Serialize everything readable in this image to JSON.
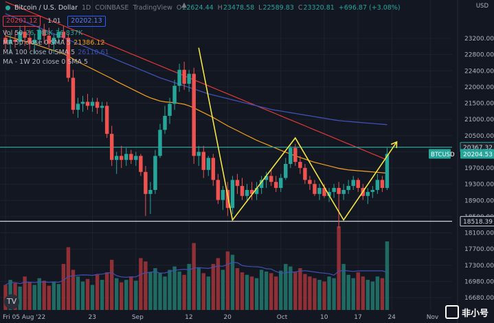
{
  "legend": {
    "symbol_title": "Bitcoin / U.S. Dollar",
    "interval": "1D",
    "exchange": "COINBASE",
    "platform": "TradingView",
    "open_label": "O",
    "open": "22624.44",
    "high_label": "H",
    "high": "23478.58",
    "low_label": "L",
    "low": "22589.83",
    "close_label": "C",
    "close": "23320.81",
    "change": "+696.87 (+3.08%)",
    "sell_price": "20201.12",
    "spread": "1.01",
    "buy_price": "20202.13"
  },
  "indicators": [
    {
      "name": "Vol 50",
      "values": [
        "26.746K",
        "26.837K"
      ],
      "color": "#26a69a"
    },
    {
      "name": "MA 50 close 0 SMA 5",
      "values": [
        "21386.12"
      ],
      "color": "#f7a21b"
    },
    {
      "name": "MA 100 close 0 SMA 5",
      "values": [
        "26110.61"
      ],
      "color": "#3f51b5"
    },
    {
      "name": "MA - 1W 20 close 0 SMA 5",
      "values": [],
      "color": "#b2b5be"
    }
  ],
  "currency": "USD",
  "colors": {
    "up": "#26a69a",
    "down": "#ef5350",
    "vol_up": "#1f6b63",
    "vol_down": "#8f2f36",
    "ma50": "#f7a21b",
    "ma100": "#3f51b5",
    "ma200": "#e53935",
    "trend": "#f5e642",
    "background": "#131722",
    "grid": "#1e222d",
    "axis_text": "#b2b5be"
  },
  "icons": [
    "chevron-up-icon",
    "gear-icon",
    "tradingview-logo-icon"
  ],
  "watermark": "非小号",
  "chart_data": {
    "type": "candlestick",
    "symbol": "BTCUSD",
    "y_ticks": [
      23200,
      22800,
      22400,
      22000,
      21500,
      21000,
      20500,
      20000,
      19700,
      19300,
      18900,
      18500,
      18100,
      17700,
      17300,
      16980,
      16680
    ],
    "x_labels": [
      {
        "label": "Fri 05 Aug '22",
        "i": 0
      },
      {
        "label": "23",
        "i": 18
      },
      {
        "label": "Sep",
        "i": 27
      },
      {
        "label": "12",
        "i": 38
      },
      {
        "label": "20",
        "i": 46
      },
      {
        "label": "Oct",
        "i": 57
      },
      {
        "label": "10",
        "i": 66
      },
      {
        "label": "17",
        "i": 73
      },
      {
        "label": "24",
        "i": 80
      },
      {
        "label": "Nov",
        "i": 88
      }
    ],
    "candles": [
      {
        "o": 23100,
        "h": 23300,
        "l": 22800,
        "c": 22950
      },
      {
        "o": 22950,
        "h": 23200,
        "l": 22700,
        "c": 23050
      },
      {
        "o": 23050,
        "h": 23250,
        "l": 22850,
        "c": 23000
      },
      {
        "o": 23000,
        "h": 23400,
        "l": 22900,
        "c": 23250
      },
      {
        "o": 23250,
        "h": 23400,
        "l": 22900,
        "c": 23100
      },
      {
        "o": 23100,
        "h": 23300,
        "l": 22800,
        "c": 22950
      },
      {
        "o": 22950,
        "h": 23200,
        "l": 22700,
        "c": 23050
      },
      {
        "o": 23050,
        "h": 23400,
        "l": 22900,
        "c": 23300
      },
      {
        "o": 23300,
        "h": 23450,
        "l": 22950,
        "c": 23150
      },
      {
        "o": 23150,
        "h": 23350,
        "l": 22850,
        "c": 22950
      },
      {
        "o": 22950,
        "h": 23200,
        "l": 22700,
        "c": 23100
      },
      {
        "o": 23100,
        "h": 23350,
        "l": 22950,
        "c": 23250
      },
      {
        "o": 23250,
        "h": 23400,
        "l": 23000,
        "c": 23100
      },
      {
        "o": 23100,
        "h": 23200,
        "l": 22000,
        "c": 22100
      },
      {
        "o": 22100,
        "h": 22300,
        "l": 21200,
        "c": 21300
      },
      {
        "o": 21300,
        "h": 21600,
        "l": 21100,
        "c": 21450
      },
      {
        "o": 21450,
        "h": 21650,
        "l": 21250,
        "c": 21500
      },
      {
        "o": 21500,
        "h": 21700,
        "l": 21300,
        "c": 21400
      },
      {
        "o": 21400,
        "h": 21600,
        "l": 21250,
        "c": 21500
      },
      {
        "o": 21500,
        "h": 21600,
        "l": 21200,
        "c": 21350
      },
      {
        "o": 21350,
        "h": 21500,
        "l": 21000,
        "c": 21400
      },
      {
        "o": 21400,
        "h": 21500,
        "l": 20600,
        "c": 20700
      },
      {
        "o": 20700,
        "h": 20900,
        "l": 19900,
        "c": 20050
      },
      {
        "o": 20050,
        "h": 20250,
        "l": 19700,
        "c": 20150
      },
      {
        "o": 20150,
        "h": 20400,
        "l": 19850,
        "c": 20050
      },
      {
        "o": 20050,
        "h": 20350,
        "l": 19900,
        "c": 20200
      },
      {
        "o": 20200,
        "h": 20300,
        "l": 19950,
        "c": 20050
      },
      {
        "o": 20050,
        "h": 20250,
        "l": 19900,
        "c": 20150
      },
      {
        "o": 20150,
        "h": 20200,
        "l": 19650,
        "c": 19750
      },
      {
        "o": 19750,
        "h": 19900,
        "l": 18650,
        "c": 19200
      },
      {
        "o": 19200,
        "h": 19500,
        "l": 18700,
        "c": 19300
      },
      {
        "o": 19300,
        "h": 20300,
        "l": 19200,
        "c": 20150
      },
      {
        "o": 20150,
        "h": 20950,
        "l": 20100,
        "c": 20800
      },
      {
        "o": 20800,
        "h": 21400,
        "l": 20700,
        "c": 21150
      },
      {
        "o": 21150,
        "h": 21600,
        "l": 20950,
        "c": 21450
      },
      {
        "o": 21450,
        "h": 22050,
        "l": 21300,
        "c": 21900
      },
      {
        "o": 21900,
        "h": 22450,
        "l": 21750,
        "c": 22300
      },
      {
        "o": 22300,
        "h": 22500,
        "l": 21800,
        "c": 21950
      },
      {
        "o": 21950,
        "h": 22300,
        "l": 21750,
        "c": 22200
      },
      {
        "o": 22200,
        "h": 22350,
        "l": 19950,
        "c": 20150
      },
      {
        "o": 20150,
        "h": 20400,
        "l": 19900,
        "c": 20250
      },
      {
        "o": 20250,
        "h": 20400,
        "l": 19600,
        "c": 19800
      },
      {
        "o": 19800,
        "h": 20150,
        "l": 19650,
        "c": 20100
      },
      {
        "o": 20100,
        "h": 20200,
        "l": 19400,
        "c": 19550
      },
      {
        "o": 19550,
        "h": 19700,
        "l": 18950,
        "c": 19050
      },
      {
        "o": 19050,
        "h": 19400,
        "l": 18800,
        "c": 19300
      },
      {
        "o": 19300,
        "h": 19500,
        "l": 18650,
        "c": 18850
      },
      {
        "o": 18850,
        "h": 19650,
        "l": 18700,
        "c": 19550
      },
      {
        "o": 19550,
        "h": 19700,
        "l": 19200,
        "c": 19400
      },
      {
        "o": 19400,
        "h": 19600,
        "l": 19050,
        "c": 19150
      },
      {
        "o": 19150,
        "h": 19450,
        "l": 19000,
        "c": 19300
      },
      {
        "o": 19300,
        "h": 19500,
        "l": 19050,
        "c": 19200
      },
      {
        "o": 19200,
        "h": 19500,
        "l": 19050,
        "c": 19350
      },
      {
        "o": 19350,
        "h": 19650,
        "l": 19200,
        "c": 19550
      },
      {
        "o": 19550,
        "h": 19750,
        "l": 19350,
        "c": 19650
      },
      {
        "o": 19650,
        "h": 19800,
        "l": 19400,
        "c": 19500
      },
      {
        "o": 19500,
        "h": 19650,
        "l": 19250,
        "c": 19350
      },
      {
        "o": 19350,
        "h": 19700,
        "l": 19250,
        "c": 19600
      },
      {
        "o": 19600,
        "h": 20100,
        "l": 19550,
        "c": 19950
      },
      {
        "o": 19950,
        "h": 20400,
        "l": 19850,
        "c": 20350
      },
      {
        "o": 20350,
        "h": 20450,
        "l": 19900,
        "c": 20000
      },
      {
        "o": 20000,
        "h": 20150,
        "l": 19700,
        "c": 19850
      },
      {
        "o": 19850,
        "h": 19950,
        "l": 19450,
        "c": 19550
      },
      {
        "o": 19550,
        "h": 19650,
        "l": 19300,
        "c": 19450
      },
      {
        "o": 19450,
        "h": 19550,
        "l": 19150,
        "c": 19200
      },
      {
        "o": 19200,
        "h": 19450,
        "l": 19050,
        "c": 19350
      },
      {
        "o": 19350,
        "h": 19450,
        "l": 19100,
        "c": 19150
      },
      {
        "o": 19150,
        "h": 19350,
        "l": 19000,
        "c": 19250
      },
      {
        "o": 19250,
        "h": 19450,
        "l": 19100,
        "c": 19350
      },
      {
        "o": 19350,
        "h": 19500,
        "l": 18350,
        "c": 19200
      },
      {
        "o": 19200,
        "h": 19450,
        "l": 19050,
        "c": 19300
      },
      {
        "o": 19300,
        "h": 19550,
        "l": 19200,
        "c": 19400
      },
      {
        "o": 19400,
        "h": 19650,
        "l": 19300,
        "c": 19550
      },
      {
        "o": 19550,
        "h": 19600,
        "l": 19250,
        "c": 19350
      },
      {
        "o": 19350,
        "h": 19450,
        "l": 19050,
        "c": 19150
      },
      {
        "o": 19150,
        "h": 19350,
        "l": 18950,
        "c": 19250
      },
      {
        "o": 19250,
        "h": 19400,
        "l": 19100,
        "c": 19300
      },
      {
        "o": 19300,
        "h": 19700,
        "l": 19200,
        "c": 19550
      },
      {
        "o": 19550,
        "h": 19650,
        "l": 19250,
        "c": 19350
      },
      {
        "o": 19350,
        "h": 20350,
        "l": 19300,
        "c": 20200
      }
    ],
    "volume_values": [
      0.3,
      0.36,
      0.32,
      0.28,
      0.4,
      0.33,
      0.3,
      0.38,
      0.35,
      0.29,
      0.34,
      0.31,
      0.55,
      0.75,
      0.48,
      0.4,
      0.34,
      0.37,
      0.3,
      0.42,
      0.36,
      0.45,
      0.6,
      0.38,
      0.33,
      0.36,
      0.4,
      0.35,
      0.62,
      0.58,
      0.45,
      0.5,
      0.44,
      0.4,
      0.48,
      0.52,
      0.46,
      0.42,
      0.55,
      0.8,
      0.5,
      0.44,
      0.4,
      0.55,
      0.62,
      0.48,
      0.7,
      0.66,
      0.5,
      0.45,
      0.42,
      0.4,
      0.38,
      0.48,
      0.46,
      0.44,
      0.4,
      0.47,
      0.55,
      0.52,
      0.45,
      0.5,
      0.43,
      0.4,
      0.38,
      0.36,
      0.34,
      0.4,
      0.38,
      1.0,
      0.55,
      0.42,
      0.38,
      0.45,
      0.4,
      0.36,
      0.34,
      0.4,
      0.38,
      0.82
    ],
    "ma50": [
      23150,
      23120,
      23080,
      23050,
      23010,
      22980,
      22940,
      22900,
      22860,
      22820,
      22780,
      22740,
      22700,
      22640,
      22570,
      22500,
      22440,
      22380,
      22320,
      22260,
      22200,
      22140,
      22080,
      22010,
      21950,
      21890,
      21830,
      21770,
      21710,
      21650,
      21600,
      21560,
      21520,
      21500,
      21490,
      21480,
      21460,
      21440,
      21400,
      21350,
      21290,
      21230,
      21170,
      21110,
      21040,
      20970,
      20900,
      20840,
      20780,
      20720,
      20660,
      20600,
      20540,
      20490,
      20440,
      20390,
      20340,
      20290,
      20240,
      20200,
      20150,
      20110,
      20070,
      20030,
      19990,
      19960,
      19930,
      19900,
      19870,
      19840,
      19820,
      19800,
      19790,
      19780,
      19770,
      19760,
      19750,
      19740,
      19730,
      19720
    ],
    "ma100": [
      23700,
      23650,
      23600,
      23550,
      23500,
      23450,
      23400,
      23350,
      23300,
      23250,
      23200,
      23150,
      23100,
      23050,
      23000,
      22950,
      22900,
      22850,
      22800,
      22750,
      22700,
      22650,
      22600,
      22550,
      22500,
      22450,
      22400,
      22350,
      22300,
      22250,
      22200,
      22150,
      22100,
      22060,
      22020,
      21980,
      21940,
      21900,
      21860,
      21820,
      21780,
      21740,
      21700,
      21670,
      21640,
      21610,
      21580,
      21550,
      21520,
      21490,
      21460,
      21430,
      21400,
      21370,
      21340,
      21310,
      21290,
      21270,
      21250,
      21230,
      21210,
      21190,
      21170,
      21150,
      21130,
      21110,
      21090,
      21070,
      21050,
      21030,
      21020,
      21010,
      21000,
      20990,
      20980,
      20970,
      20960,
      20950,
      20940,
      20930
    ],
    "ma_week": [
      24000,
      23950,
      23900,
      23850,
      23800,
      23750,
      23700,
      23650,
      23600,
      23550,
      23500,
      23450,
      23400,
      23350,
      23300,
      23250,
      23200,
      23150,
      23100,
      23050,
      23000,
      22950,
      22900,
      22850,
      22800,
      22750,
      22700,
      22650,
      22600,
      22550,
      22500,
      22450,
      22400,
      22350,
      22300,
      22250,
      22200,
      22150,
      22100,
      22050,
      22000,
      21950,
      21900,
      21850,
      21800,
      21750,
      21700,
      21650,
      21600,
      21550,
      21500,
      21450,
      21400,
      21350,
      21300,
      21250,
      21200,
      21150,
      21100,
      21050,
      21000,
      20950,
      20900,
      20850,
      20800,
      20750,
      20700,
      20650,
      20600,
      20550,
      20500,
      20450,
      20400,
      20350,
      20300,
      20250,
      20200,
      20150,
      20100,
      20050
    ],
    "trend_points": [
      [
        40,
        22850
      ],
      [
        47,
        18550
      ],
      [
        60,
        20600
      ],
      [
        70,
        18550
      ],
      [
        81,
        20500
      ]
    ],
    "horizontal_levels": [
      {
        "value": 20367.32,
        "label": "20367.32",
        "color": "#26a69a"
      },
      {
        "value": 18518.39,
        "label": "18518.39",
        "color": "#d1d4dc"
      }
    ],
    "last_price_tag": {
      "symbol": "BTCUSD",
      "value": "20204.53"
    },
    "ylim_price": [
      18050,
      23700
    ]
  }
}
